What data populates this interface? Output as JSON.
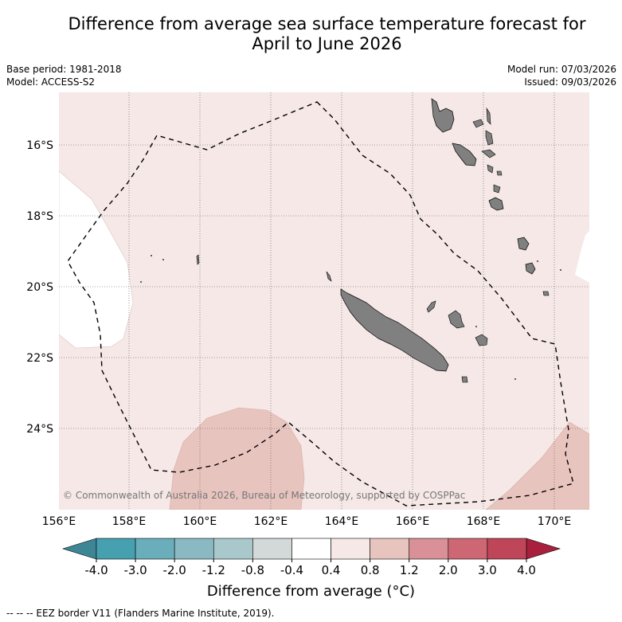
{
  "title_line1": "Difference from average sea surface temperature forecast for",
  "title_line2": "April to June 2026",
  "base_period": "Base period: 1981-2018",
  "model": "Model: ACCESS-S2",
  "model_run": "Model run: 07/03/2026",
  "issued": "Issued: 09/03/2026",
  "copyright": "© Commonwealth of Australia 2026, Bureau of Meteorology, supported by COSPPac",
  "lon_labels": [
    "156°E",
    "158°E",
    "160°E",
    "162°E",
    "164°E",
    "166°E",
    "168°E",
    "170°E"
  ],
  "lat_labels": [
    "16°S",
    "18°S",
    "20°S",
    "22°S",
    "24°S"
  ],
  "colorbar": {
    "ticks": [
      "-4.0",
      "-3.0",
      "-2.0",
      "-1.2",
      "-0.8",
      "-0.4",
      "0.4",
      "0.8",
      "1.2",
      "2.0",
      "3.0",
      "4.0"
    ],
    "colors": [
      "#46a0b0",
      "#6aaebb",
      "#8ab9c4",
      "#a9c8cc",
      "#d3d8d8",
      "#ffffff",
      "#f5e8e6",
      "#e8c4bf",
      "#d99097",
      "#cd6774",
      "#bf4558"
    ],
    "under_color": "#3e8595",
    "over_color": "#a8203e",
    "title": "Difference from average (°C)"
  },
  "legend_text": "--  --  -- EEZ border V11 (Flanders Marine Institute, 2019).",
  "colors": {
    "ocean_anomaly": "#f5e8e6",
    "warm_patch": "#e8c4bf",
    "land": "#808080"
  }
}
